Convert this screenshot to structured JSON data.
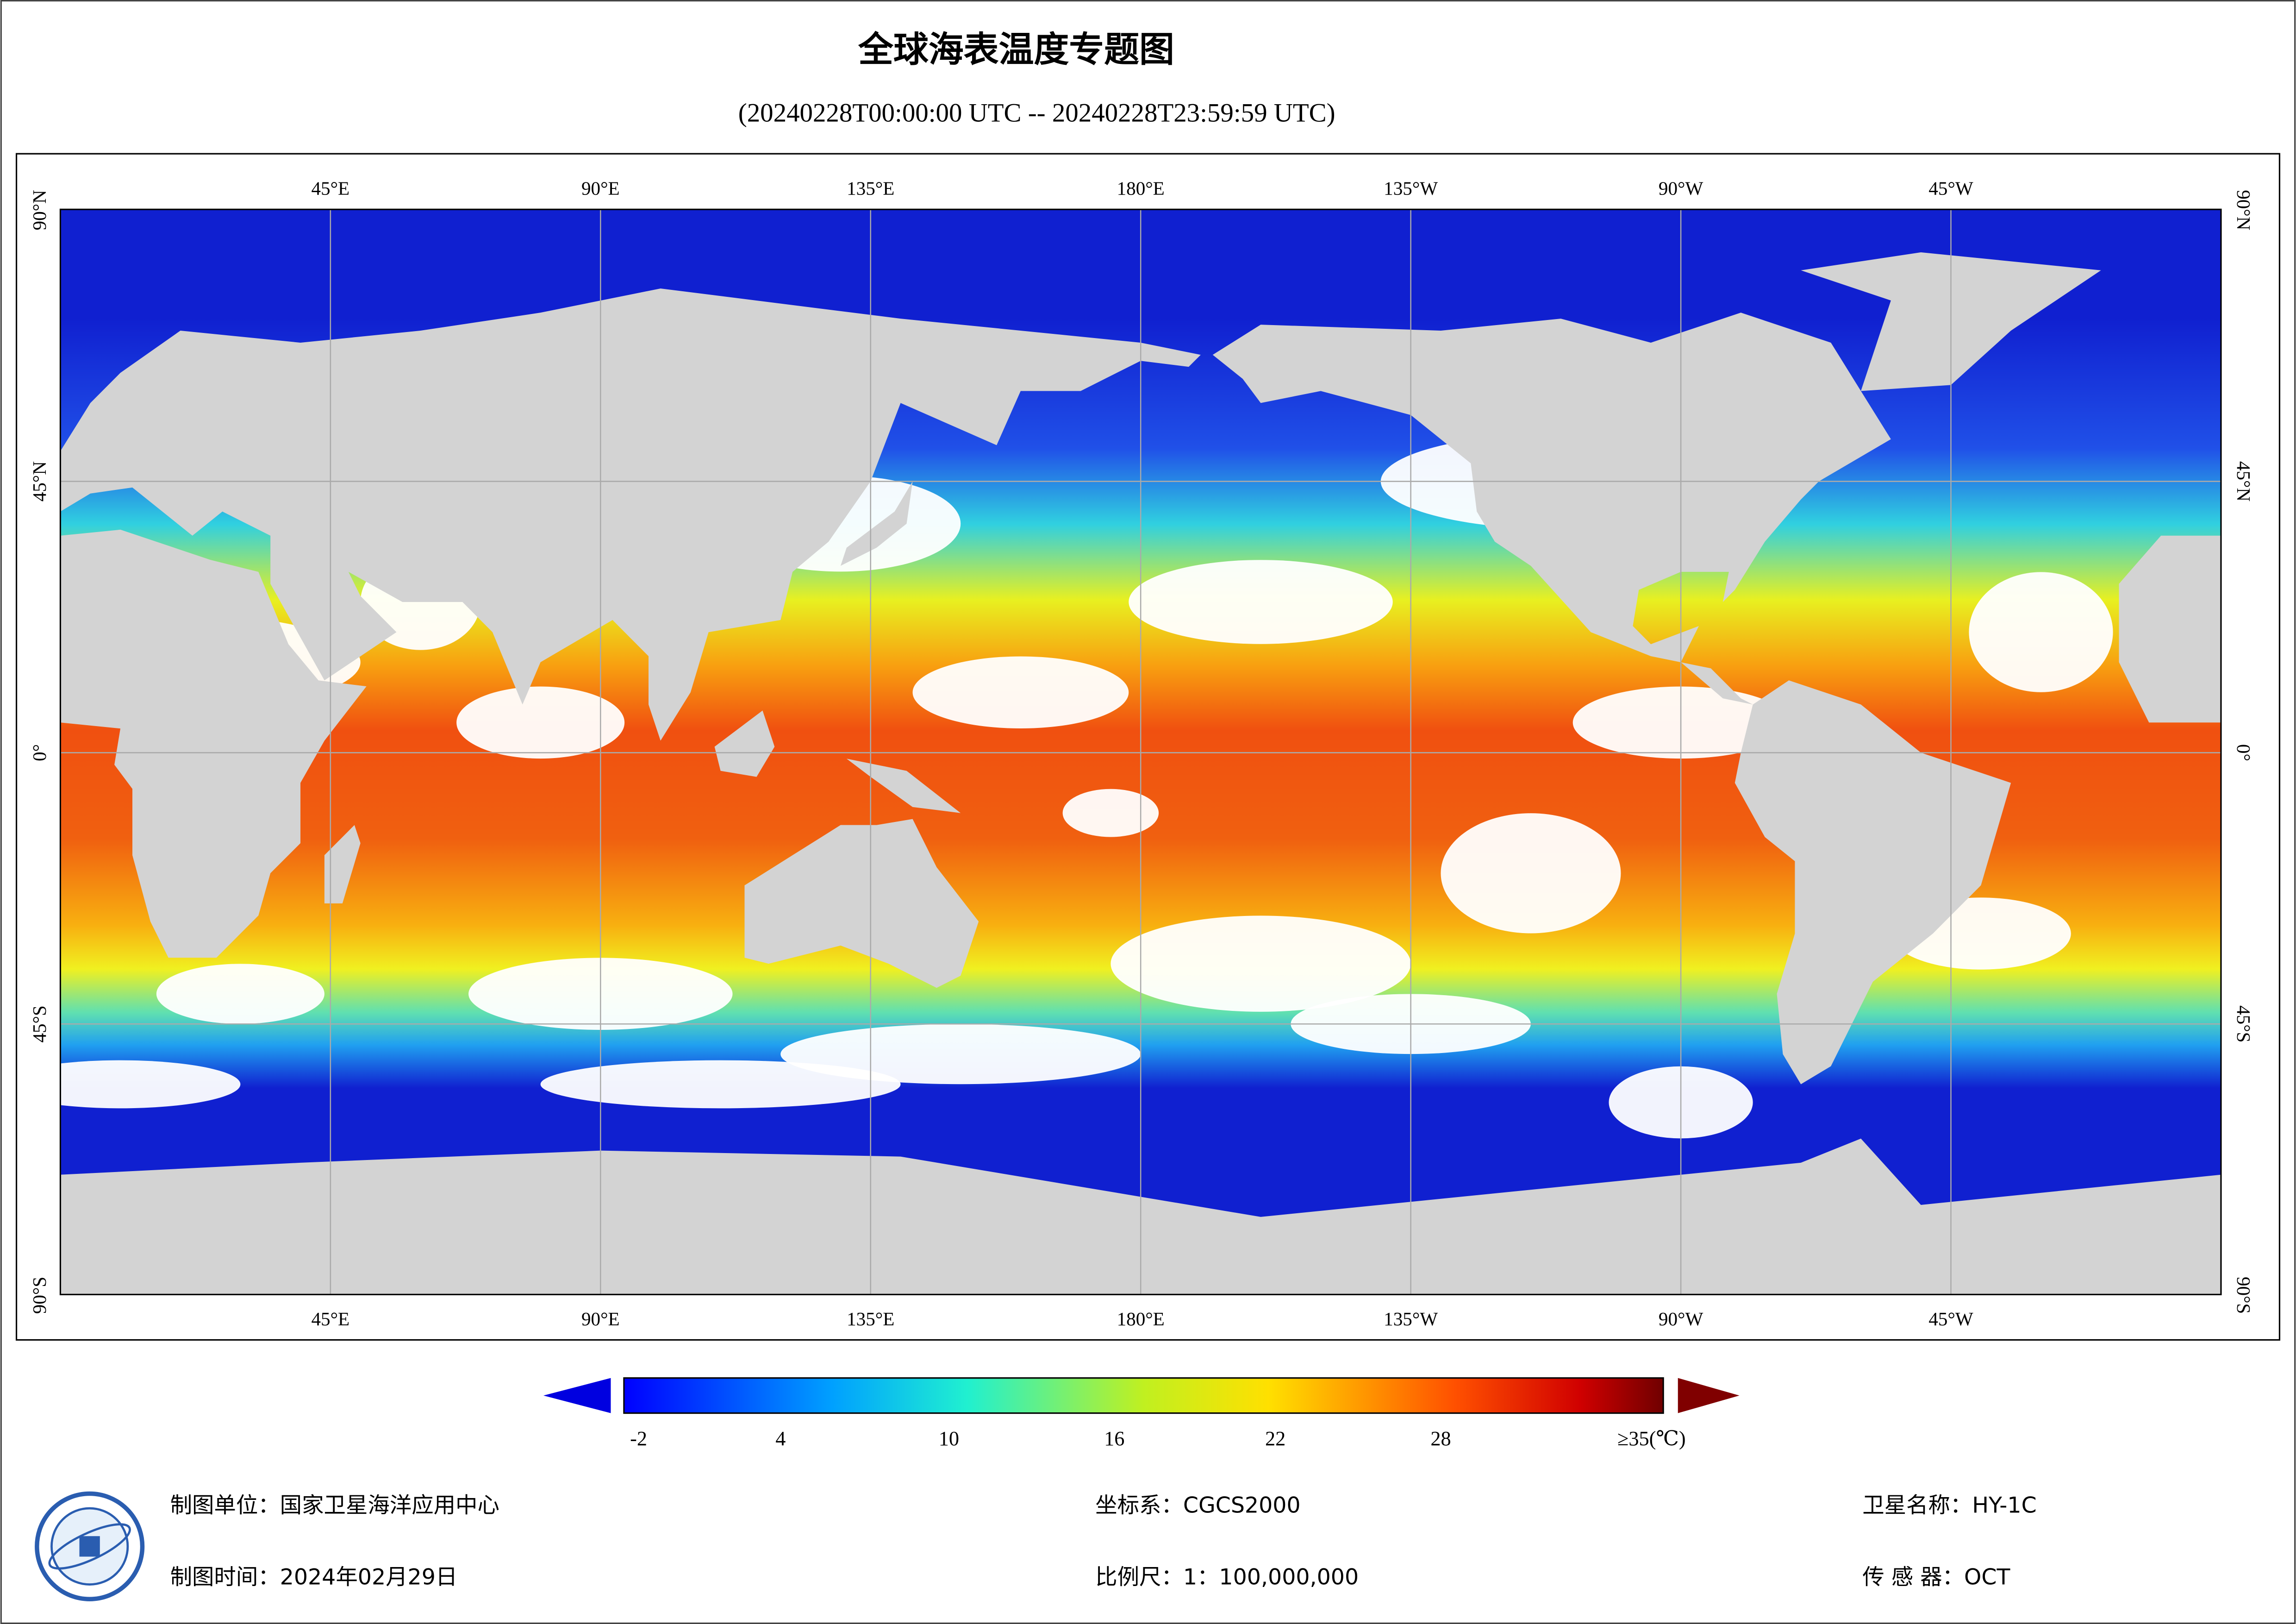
{
  "header": {
    "title": "全球海表温度专题图",
    "subtitle": "(20240228T00:00:00 UTC -- 20240228T23:59:59 UTC)"
  },
  "map": {
    "lon_labels": [
      "45°E",
      "90°E",
      "135°E",
      "180°E",
      "135°W",
      "90°W",
      "45°W"
    ],
    "lat_labels": [
      "90°N",
      "45°N",
      "0°",
      "45°S",
      "90°S"
    ]
  },
  "legend": {
    "ticks": [
      "-2",
      "4",
      "10",
      "16",
      "22",
      "28",
      "≥35(℃)"
    ]
  },
  "footer": {
    "unit": "制图单位：国家卫星海洋应用中心",
    "date": "制图时间：2024年02月29日",
    "crs": "坐标系：CGCS2000",
    "scale": "比例尺：1：100,000,000",
    "satellite": "卫星名称：HY-1C",
    "sensor": "传 感 器：OCT"
  }
}
